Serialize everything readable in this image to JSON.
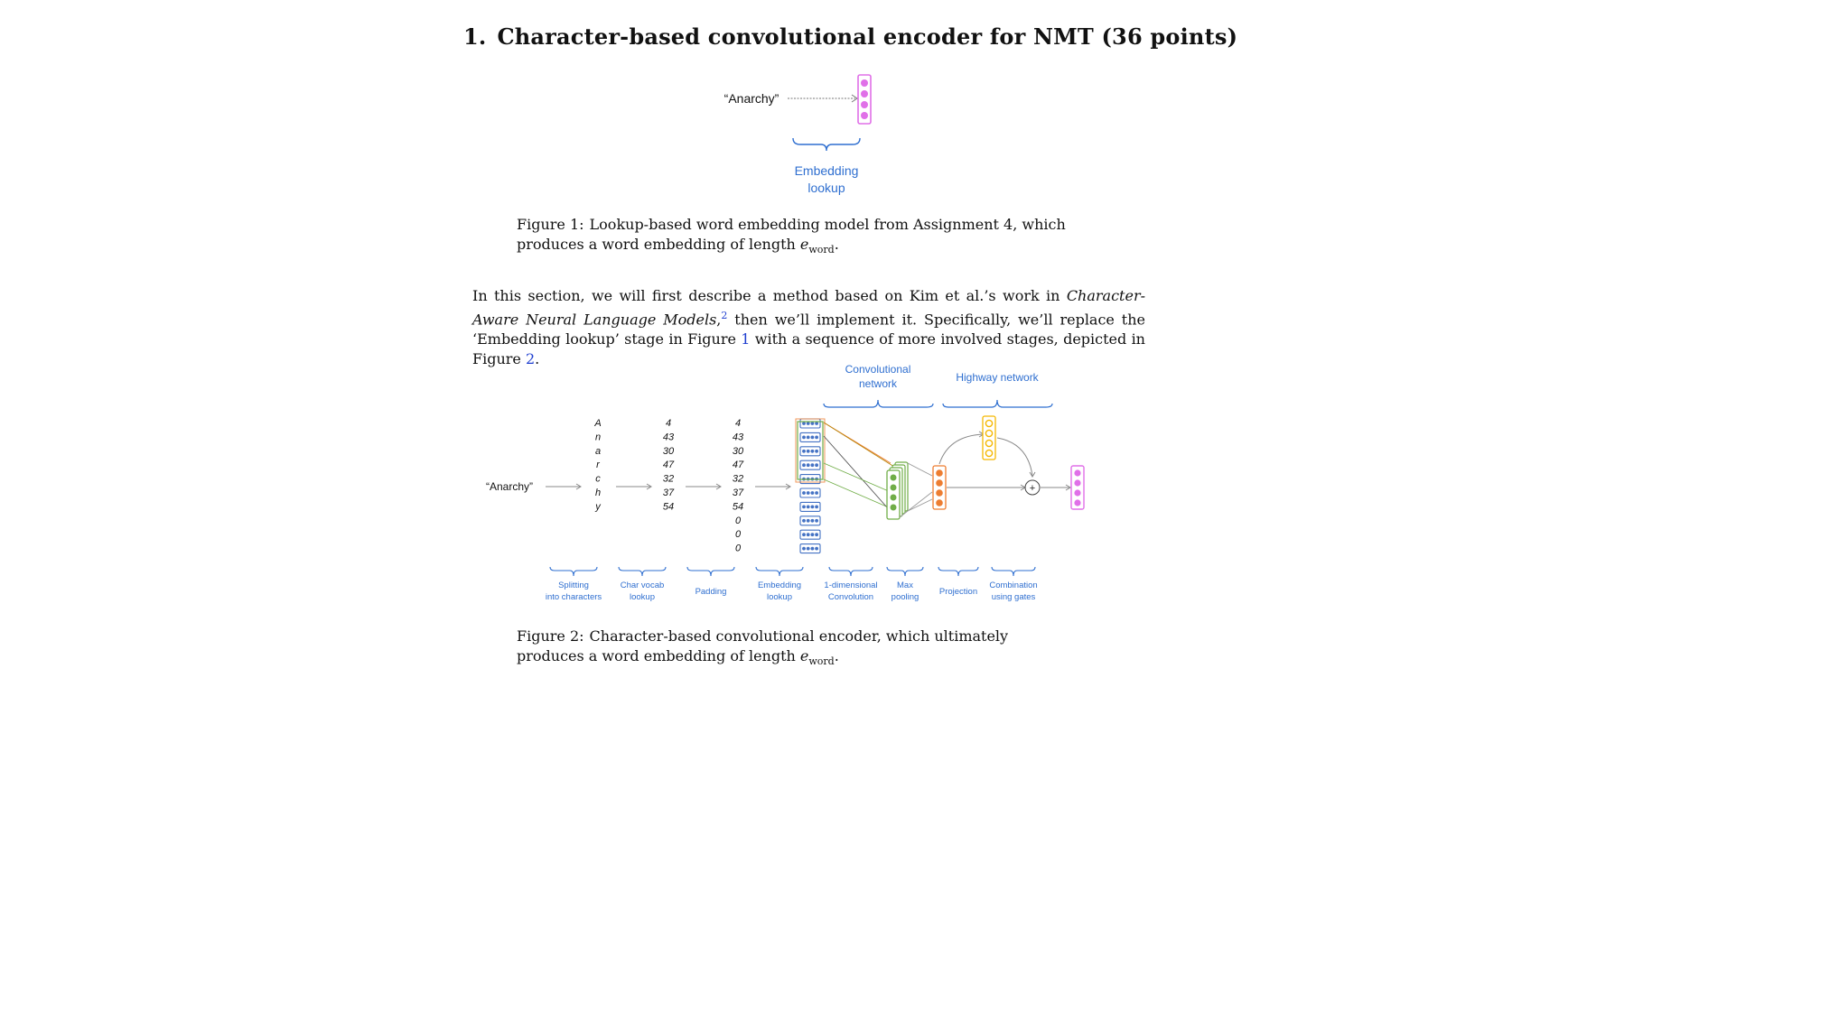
{
  "section": {
    "number": "1.",
    "title": "Character-based convolutional encoder for NMT (36 points)"
  },
  "figure1": {
    "input_word": "“Anarchy”",
    "brace_label_line1": "Embedding",
    "brace_label_line2": "lookup",
    "caption_label": "Figure 1:",
    "caption_text": "Lookup-based word embedding model from Assignment 4, which produces a word embedding of length",
    "caption_symbol": "e",
    "caption_subscript": "word",
    "caption_end": "."
  },
  "paragraph": {
    "part1": "In this section, we will first describe a method based on Kim et al.’s work in ",
    "italic1": "Character-Aware Neural Language Models",
    "part2": ",",
    "footnote": "2",
    "part3": " then we’ll implement it. Specifically, we’ll replace the ‘Embedding lookup’ stage in Figure ",
    "ref1": "1",
    "part4": " with a sequence of more involved stages, depicted in Figure ",
    "ref2": "2",
    "part5": "."
  },
  "figure2": {
    "input_word": "“Anarchy”",
    "characters": [
      "A",
      "n",
      "a",
      "r",
      "c",
      "h",
      "y"
    ],
    "char_ids": [
      "4",
      "43",
      "30",
      "47",
      "32",
      "37",
      "54"
    ],
    "padded_ids": [
      "4",
      "43",
      "30",
      "47",
      "32",
      "37",
      "54",
      "0",
      "0",
      "0"
    ],
    "top_labels": {
      "conv_line1": "Convolutional",
      "conv_line2": "network",
      "highway": "Highway network"
    },
    "plus_symbol": "+",
    "stages": [
      {
        "line1": "Splitting",
        "line2": "into characters"
      },
      {
        "line1": "Char vocab",
        "line2": "lookup"
      },
      {
        "line1": "Padding",
        "line2": ""
      },
      {
        "line1": "Embedding",
        "line2": "lookup"
      },
      {
        "line1": "1-dimensional",
        "line2": "Convolution"
      },
      {
        "line1": "Max",
        "line2": "pooling"
      },
      {
        "line1": "Projection",
        "line2": ""
      },
      {
        "line1": "Combination",
        "line2": "using gates"
      }
    ],
    "caption_label": "Figure 2:",
    "caption_text": "Character-based convolutional encoder, which ultimately produces a word embedding of length",
    "caption_symbol": "e",
    "caption_subscript": "word",
    "caption_end": "."
  },
  "colors": {
    "label_blue": "#2f6fd0",
    "embedding_blue": "#4472c4",
    "conv_green": "#70ad47",
    "pool_orange": "#ed7d31",
    "gate_yellow": "#f5b800",
    "output_pink": "#e070e8"
  }
}
